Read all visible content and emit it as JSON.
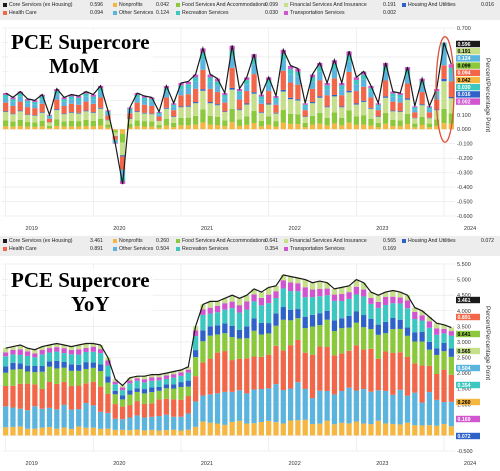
{
  "colors": {
    "core_services": "#1a1a1a",
    "nonprofits": "#f5b642",
    "food_services": "#8cc83c",
    "financial_services": "#c6df8a",
    "housing_utilities": "#2f62c9",
    "health_care": "#f2674a",
    "other_services": "#5ab4de",
    "recreation_services": "#3cc7c0",
    "transportation_services": "#d055cf",
    "highlight_ellipse": "#e0503a"
  },
  "top": {
    "title_line1": "PCE Supercore",
    "title_line2": "MoM",
    "vertical_label": "Percent/Percentage Point",
    "legend": [
      {
        "key": "core_services",
        "label": "Core Services (ex Housing)",
        "value": "0.596"
      },
      {
        "key": "nonprofits",
        "label": "Nonprofits",
        "value": "0.042"
      },
      {
        "key": "food_services",
        "label": "Food Services And Accommodations",
        "value": "0.099"
      },
      {
        "key": "financial_services",
        "label": "Financial Services And Insurance",
        "value": "0.191"
      },
      {
        "key": "housing_utilities",
        "label": "Housing And Utilities",
        "value": "0.016"
      },
      {
        "key": "health_care",
        "label": "Health Care",
        "value": "0.094"
      },
      {
        "key": "other_services",
        "label": "Other Services",
        "value": "0.124"
      },
      {
        "key": "recreation_services",
        "label": "Recreation Services",
        "value": "0.030"
      },
      {
        "key": "transportation_services",
        "label": "Transportation Services",
        "value": "0.002"
      }
    ],
    "value_tags": [
      "0.596",
      "0.191",
      "0.124",
      "0.099",
      "0.094",
      "0.042",
      "0.030",
      "0.016",
      "0.002"
    ],
    "x_ticks": [
      "2019",
      "2020",
      "2021",
      "2022",
      "2023",
      "2024"
    ]
  },
  "bottom": {
    "title_line1": "PCE Supercore",
    "title_line2": "YoY",
    "vertical_label": "Percent/Percentage Point",
    "legend": [
      {
        "key": "core_services",
        "label": "Core Services (ex Housing)",
        "value": "3.461"
      },
      {
        "key": "nonprofits",
        "label": "Nonprofits",
        "value": "0.260"
      },
      {
        "key": "food_services",
        "label": "Food Services And Accommodations",
        "value": "0.641"
      },
      {
        "key": "financial_services",
        "label": "Financial Services And Insurance",
        "value": "0.565"
      },
      {
        "key": "housing_utilities",
        "label": "Housing And Utilities",
        "value": "0.072"
      },
      {
        "key": "health_care",
        "label": "Health Care",
        "value": "0.891"
      },
      {
        "key": "other_services",
        "label": "Other Services",
        "value": "0.504"
      },
      {
        "key": "recreation_services",
        "label": "Recreation Services",
        "value": "0.354"
      },
      {
        "key": "transportation_services",
        "label": "Transportation Services",
        "value": "0.169"
      }
    ],
    "value_tags": [
      "3.461",
      "0.891",
      "0.641",
      "0.565",
      "0.504",
      "0.354",
      "0.260",
      "0.169",
      "0.072"
    ],
    "x_ticks": [
      "2019",
      "2020",
      "2021",
      "2022",
      "2023",
      "2024"
    ]
  },
  "chart_data": [
    {
      "type": "bar",
      "stacked": true,
      "title": "PCE Supercore MoM",
      "ylabel": "Percent/Percentage Point",
      "ylim": [
        -0.6,
        0.7
      ],
      "y_ticks": [
        0.7,
        0.6,
        0.5,
        0.4,
        0.3,
        0.2,
        0.1,
        0.0,
        -0.1,
        -0.2,
        -0.3,
        -0.4,
        -0.5,
        -0.6
      ],
      "x_ticks": [
        "2019",
        "2020",
        "2021",
        "2022",
        "2023",
        "2024"
      ],
      "line_series": "Core Services (ex Housing)",
      "total": [
        0.25,
        0.22,
        0.26,
        0.21,
        0.2,
        0.24,
        0.1,
        0.28,
        0.22,
        0.24,
        0.23,
        0.26,
        0.24,
        0.3,
        0.13,
        -0.1,
        -0.38,
        0.15,
        0.25,
        0.23,
        0.22,
        0.12,
        0.3,
        0.18,
        0.32,
        0.33,
        0.38,
        0.56,
        0.38,
        0.35,
        0.25,
        0.58,
        0.28,
        0.36,
        0.52,
        0.24,
        0.36,
        0.23,
        0.55,
        0.44,
        0.42,
        0.18,
        0.38,
        0.46,
        0.32,
        0.48,
        0.32,
        0.54,
        0.36,
        0.4,
        0.3,
        0.18,
        0.46,
        0.26,
        0.25,
        0.43,
        0.16,
        0.35,
        0.16,
        0.28,
        0.6,
        0.45
      ],
      "series": [
        {
          "name": "Nonprofits",
          "values": [
            0.021,
            0.018,
            0.022,
            0.017,
            0.016,
            0.02,
            0.008,
            0.023,
            0.018,
            0.02,
            0.019,
            0.022,
            0.02,
            0.025,
            0.011,
            -0.008,
            -0.032,
            0.012,
            0.021,
            0.019,
            0.018,
            0.01,
            0.025,
            0.015,
            0.027,
            0.027,
            0.032,
            0.047,
            0.032,
            0.029,
            0.021,
            0.048,
            0.023,
            0.03,
            0.043,
            0.02,
            0.03,
            0.019,
            0.046,
            0.037,
            0.035,
            0.015,
            0.032,
            0.038,
            0.027,
            0.04,
            0.027,
            0.045,
            0.03,
            0.033,
            0.025,
            0.015,
            0.038,
            0.022,
            0.021,
            0.036,
            0.013,
            0.029,
            0.013,
            0.023,
            0.042,
            0.038
          ]
        },
        {
          "name": "Food Services And Accommodations",
          "values": [
            0.04,
            0.035,
            0.042,
            0.034,
            0.032,
            0.038,
            0.016,
            0.045,
            0.035,
            0.038,
            0.037,
            0.042,
            0.038,
            0.048,
            0.021,
            -0.016,
            -0.061,
            0.024,
            0.04,
            0.037,
            0.035,
            0.019,
            0.048,
            0.029,
            0.051,
            0.053,
            0.061,
            0.09,
            0.061,
            0.056,
            0.04,
            0.093,
            0.045,
            0.058,
            0.083,
            0.038,
            0.058,
            0.037,
            0.088,
            0.07,
            0.067,
            0.029,
            0.061,
            0.074,
            0.051,
            0.077,
            0.051,
            0.086,
            0.058,
            0.064,
            0.048,
            0.029,
            0.074,
            0.042,
            0.04,
            0.069,
            0.026,
            0.056,
            0.026,
            0.045,
            0.099,
            0.072
          ]
        },
        {
          "name": "Financial Services And Insurance",
          "values": [
            0.058,
            0.051,
            0.06,
            0.048,
            0.046,
            0.055,
            0.023,
            0.064,
            0.051,
            0.055,
            0.053,
            0.06,
            0.055,
            0.069,
            0.03,
            -0.023,
            -0.087,
            0.035,
            0.058,
            0.053,
            0.051,
            0.028,
            0.069,
            0.041,
            0.074,
            0.076,
            0.087,
            0.129,
            0.087,
            0.081,
            0.058,
            0.133,
            0.064,
            0.083,
            0.12,
            0.055,
            0.083,
            0.053,
            0.127,
            0.101,
            0.097,
            0.041,
            0.087,
            0.106,
            0.074,
            0.11,
            0.074,
            0.124,
            0.083,
            0.092,
            0.069,
            0.041,
            0.106,
            0.06,
            0.058,
            0.099,
            0.037,
            0.081,
            0.037,
            0.064,
            0.191,
            0.104
          ]
        },
        {
          "name": "Housing And Utilities",
          "values": [
            0.005,
            0.004,
            0.005,
            0.004,
            0.004,
            0.005,
            0.002,
            0.006,
            0.004,
            0.005,
            0.005,
            0.005,
            0.005,
            0.006,
            0.003,
            -0.002,
            -0.008,
            0.003,
            0.005,
            0.005,
            0.004,
            0.002,
            0.006,
            0.004,
            0.006,
            0.007,
            0.008,
            0.011,
            0.008,
            0.007,
            0.005,
            0.012,
            0.006,
            0.007,
            0.01,
            0.005,
            0.007,
            0.005,
            0.011,
            0.009,
            0.008,
            0.004,
            0.008,
            0.009,
            0.006,
            0.01,
            0.006,
            0.011,
            0.007,
            0.008,
            0.006,
            0.004,
            0.009,
            0.005,
            0.005,
            0.009,
            0.003,
            0.007,
            0.003,
            0.006,
            0.016,
            0.009
          ]
        },
        {
          "name": "Health Care",
          "values": [
            0.06,
            0.053,
            0.062,
            0.05,
            0.048,
            0.058,
            0.024,
            0.067,
            0.053,
            0.058,
            0.055,
            0.062,
            0.058,
            0.072,
            0.031,
            -0.024,
            -0.091,
            0.036,
            0.06,
            0.055,
            0.053,
            0.029,
            0.072,
            0.043,
            0.077,
            0.079,
            0.091,
            0.134,
            0.091,
            0.084,
            0.06,
            0.139,
            0.067,
            0.086,
            0.125,
            0.058,
            0.086,
            0.055,
            0.132,
            0.106,
            0.101,
            0.043,
            0.091,
            0.11,
            0.077,
            0.115,
            0.077,
            0.13,
            0.086,
            0.096,
            0.072,
            0.043,
            0.11,
            0.062,
            0.06,
            0.103,
            0.038,
            0.084,
            0.038,
            0.067,
            0.094,
            0.108
          ]
        },
        {
          "name": "Other Services",
          "values": [
            0.033,
            0.029,
            0.034,
            0.027,
            0.026,
            0.031,
            0.013,
            0.036,
            0.029,
            0.031,
            0.03,
            0.034,
            0.031,
            0.039,
            0.017,
            -0.013,
            -0.049,
            0.02,
            0.033,
            0.03,
            0.029,
            0.016,
            0.039,
            0.023,
            0.042,
            0.043,
            0.049,
            0.073,
            0.049,
            0.046,
            0.033,
            0.075,
            0.036,
            0.047,
            0.068,
            0.031,
            0.047,
            0.03,
            0.072,
            0.057,
            0.055,
            0.023,
            0.049,
            0.06,
            0.042,
            0.062,
            0.042,
            0.07,
            0.047,
            0.052,
            0.039,
            0.023,
            0.06,
            0.034,
            0.033,
            0.056,
            0.021,
            0.046,
            0.021,
            0.036,
            0.124,
            0.058
          ]
        },
        {
          "name": "Recreation Services",
          "values": [
            0.02,
            0.018,
            0.021,
            0.017,
            0.016,
            0.019,
            0.008,
            0.022,
            0.018,
            0.019,
            0.018,
            0.021,
            0.019,
            0.024,
            0.01,
            -0.008,
            -0.03,
            0.012,
            0.02,
            0.018,
            0.018,
            0.01,
            0.024,
            0.014,
            0.026,
            0.026,
            0.03,
            0.045,
            0.03,
            0.028,
            0.02,
            0.046,
            0.022,
            0.029,
            0.042,
            0.019,
            0.029,
            0.018,
            0.044,
            0.035,
            0.034,
            0.014,
            0.03,
            0.037,
            0.026,
            0.038,
            0.026,
            0.043,
            0.029,
            0.032,
            0.024,
            0.014,
            0.037,
            0.021,
            0.02,
            0.034,
            0.013,
            0.028,
            0.013,
            0.022,
            0.03,
            0.036
          ]
        },
        {
          "name": "Transportation Services",
          "values": [
            0.013,
            0.012,
            0.014,
            0.011,
            0.011,
            0.013,
            0.005,
            0.015,
            0.012,
            0.013,
            0.012,
            0.014,
            0.013,
            0.016,
            0.007,
            -0.005,
            -0.02,
            0.008,
            0.013,
            0.012,
            0.012,
            0.006,
            0.016,
            0.01,
            0.017,
            0.017,
            0.02,
            0.03,
            0.02,
            0.019,
            0.013,
            0.031,
            0.015,
            0.019,
            0.028,
            0.013,
            0.019,
            0.012,
            0.029,
            0.023,
            0.022,
            0.01,
            0.02,
            0.024,
            0.017,
            0.025,
            0.017,
            0.029,
            0.019,
            0.021,
            0.016,
            0.01,
            0.024,
            0.014,
            0.013,
            0.023,
            0.008,
            0.019,
            0.008,
            0.015,
            0.002,
            0.024
          ]
        }
      ]
    },
    {
      "type": "bar",
      "stacked": true,
      "title": "PCE Supercore YoY",
      "ylabel": "Percent/Percentage Point",
      "ylim": [
        -0.5,
        5.5
      ],
      "y_ticks": [
        5.5,
        5.0,
        4.5,
        4.0,
        3.5,
        3.0,
        2.5,
        2.0,
        1.5,
        1.0,
        0.5,
        0.0,
        -0.5
      ],
      "x_ticks": [
        "2019",
        "2020",
        "2021",
        "2022",
        "2023",
        "2024"
      ],
      "line_series": "Core Services (ex Housing)",
      "total": [
        2.8,
        2.85,
        2.9,
        2.8,
        2.75,
        2.85,
        2.9,
        2.95,
        2.9,
        2.85,
        2.9,
        2.95,
        2.95,
        2.9,
        2.5,
        1.8,
        1.6,
        1.85,
        1.9,
        1.9,
        1.95,
        1.95,
        2.0,
        2.05,
        2.1,
        2.2,
        3.5,
        4.2,
        4.3,
        4.3,
        4.4,
        4.5,
        4.4,
        4.5,
        4.7,
        4.6,
        4.75,
        4.8,
        5.15,
        5.1,
        5.05,
        5.0,
        4.9,
        4.95,
        4.9,
        4.7,
        4.75,
        4.8,
        5.0,
        4.9,
        4.6,
        4.5,
        4.6,
        4.65,
        4.6,
        4.5,
        4.1,
        4.0,
        3.8,
        3.6,
        3.55,
        3.46
      ]
    }
  ]
}
